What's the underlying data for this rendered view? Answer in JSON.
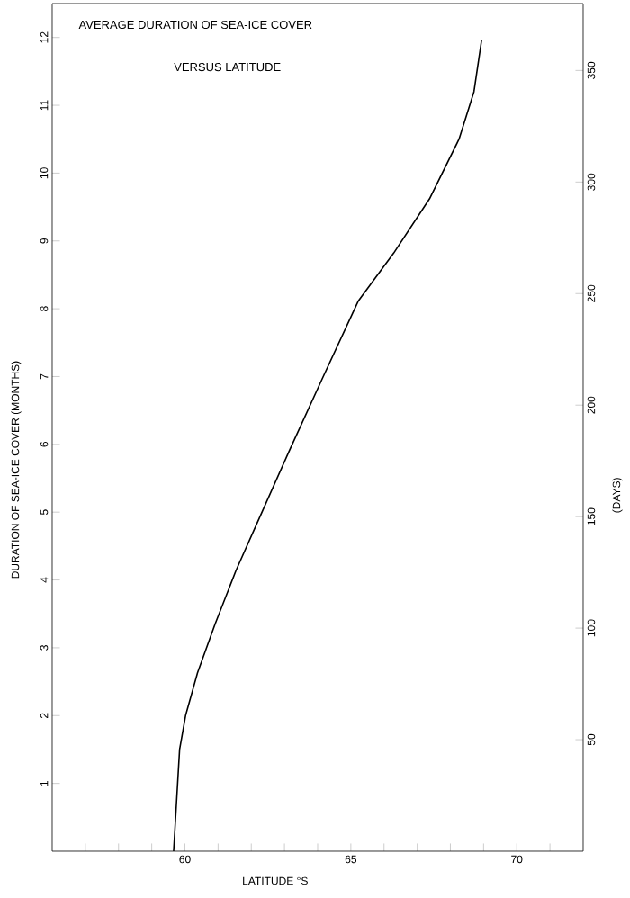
{
  "chart_data": {
    "type": "line",
    "title": "AVERAGE DURATION OF SEA-ICE COVER",
    "subtitle": "VERSUS LATITUDE",
    "xlabel": "LATITUDE °S",
    "ylabel": "DURATION OF SEA-ICE COVER (MONTHS)",
    "y2label": "(DAYS)",
    "xlim": [
      56,
      72
    ],
    "ylim": [
      0,
      12.5
    ],
    "y2lim": [
      0,
      380
    ],
    "xticks": [
      {
        "value": 57,
        "label": null
      },
      {
        "value": 58,
        "label": null
      },
      {
        "value": 59,
        "label": null
      },
      60,
      {
        "value": 61,
        "label": null
      },
      {
        "value": 62,
        "label": null
      },
      {
        "value": 63,
        "label": null
      },
      {
        "value": 64,
        "label": null
      },
      65,
      {
        "value": 66,
        "label": null
      },
      {
        "value": 67,
        "label": null
      },
      {
        "value": 68,
        "label": null
      },
      {
        "value": 69,
        "label": null
      },
      70,
      {
        "value": 71,
        "label": null
      }
    ],
    "yticks": [
      1,
      2,
      3,
      4,
      5,
      6,
      7,
      8,
      9,
      10,
      11,
      12
    ],
    "y2ticks": [
      50,
      100,
      150,
      200,
      250,
      300,
      350
    ],
    "grid": false,
    "marker": "none",
    "line_style": "solid",
    "series": [
      {
        "color": "#000000",
        "x": [
          59.66,
          59.84,
          60.02,
          60.38,
          60.91,
          61.54,
          62.35,
          63.15,
          64.14,
          65.22,
          66.29,
          67.37,
          68.26,
          68.71,
          68.94
        ],
        "values": [
          0,
          1.5,
          2.0,
          2.63,
          3.35,
          4.14,
          5.03,
          5.91,
          6.97,
          8.11,
          8.82,
          9.62,
          10.5,
          11.2,
          11.96
        ]
      }
    ]
  }
}
